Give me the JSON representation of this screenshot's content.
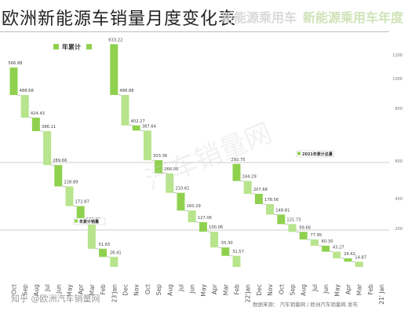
{
  "page_title": "欧洲新能源车销量月度变化表",
  "ghost_header": {
    "left": "新能源乘用车",
    "right": "新能源乘用车年度"
  },
  "watermark": "汽车销量网",
  "footer": {
    "left": "知乎 @欧洲汽车销量网",
    "right": "数据来源：  汽车销量网  /  欧洲汽车销量网  发布"
  },
  "colors": {
    "bar": "#8fd14f",
    "bar_light": "#b7e48c",
    "guide": "#bcbcbc",
    "connector": "#9a9a9a",
    "legend": "#8fd14f"
  },
  "chart_data": {
    "type": "bar",
    "subtype": "waterfall-descending",
    "title": "",
    "legend": [
      "年累计"
    ],
    "annotations": [
      {
        "text": "年累计销量",
        "near_category_index": 9
      },
      {
        "text": "2021年累计总量",
        "near_category_index": 36
      }
    ],
    "y_ticks": [
      "1200",
      "1000",
      "800",
      "600",
      "400",
      "200"
    ],
    "segments": [
      {
        "categories": [
          "Oct",
          "Sep",
          "Aug",
          "Jul",
          "Jun",
          "May",
          "Apr",
          "Mar",
          "Feb",
          "Jan"
        ],
        "values": [
          566.88,
          488.68,
          424.43,
          386.11,
          289.66,
          228.89,
          172.87,
          123.32,
          51.65,
          28.41
        ],
        "ends": [
          488.68,
          424.43,
          386.11,
          289.66,
          228.89,
          172.87,
          123.32,
          51.65,
          28.41,
          0
        ]
      },
      {
        "categories": [
          "Dec",
          "Nov",
          "Oct",
          "Sep",
          "Aug",
          "Jul",
          "Jun",
          "May",
          "Apr",
          "Mar",
          "Feb",
          "Jan"
        ],
        "values": [
          633.22,
          488.88,
          402.27,
          387.64,
          303.36,
          266.06,
          210.61,
          160.29,
          127.06,
          100.06,
          55.3,
          31.57
        ],
        "ends": [
          488.88,
          402.27,
          387.64,
          303.36,
          266.06,
          210.61,
          160.29,
          127.06,
          100.06,
          55.3,
          31.57,
          0
        ]
      },
      {
        "categories": [
          "Dec",
          "Nov",
          "Oct",
          "Sep",
          "Aug",
          "Jul",
          "Jun",
          "May",
          "Apr",
          "Mar",
          "Feb",
          "Jan"
        ],
        "values": [
          292.75,
          244.29,
          207.68,
          178.56,
          148.81,
          121.73,
          99.66,
          77.95,
          60.3,
          43.27,
          24.42,
          14.87
        ],
        "ends": [
          244.29,
          207.68,
          178.56,
          148.81,
          121.73,
          99.66,
          77.95,
          60.3,
          43.27,
          24.42,
          14.87,
          0
        ]
      }
    ],
    "x_tick_labels": [
      "Oct",
      "Sep",
      "Aug",
      "Jul",
      "Jun",
      "May",
      "Apr",
      "Mar",
      "Feb",
      "23'Jan",
      "Dec",
      "Nov",
      "Oct",
      "Sep",
      "Aug",
      "Jul",
      "Jun",
      "May",
      "Apr",
      "Mar",
      "Feb",
      "22'Jan",
      "Dec",
      "Nov",
      "Oct",
      "Sep",
      "Aug",
      "Jul",
      "Jun",
      "May",
      "Apr",
      "Mar",
      "Feb",
      "21' Jan"
    ]
  }
}
